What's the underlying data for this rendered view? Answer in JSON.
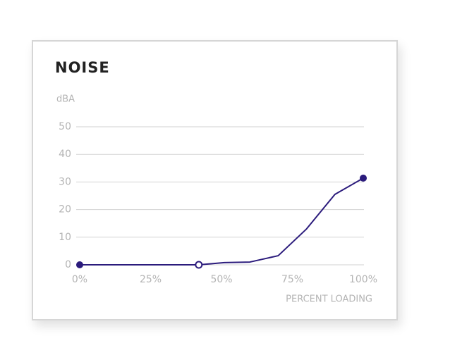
{
  "chart_data": {
    "type": "line",
    "title": "NOISE",
    "y_label": "dBA",
    "x_label": "PERCENT LOADING",
    "x": [
      0,
      42,
      51,
      60,
      70,
      80,
      90,
      100
    ],
    "series": [
      {
        "color": "#2b1b7c",
        "values": [
          0,
          0,
          0.8,
          1,
          3.3,
          13,
          25.5,
          31.4
        ],
        "markers": [
          "filled",
          "open",
          "none",
          "none",
          "none",
          "none",
          "none",
          "filled"
        ]
      }
    ],
    "xlim": [
      0,
      100
    ],
    "xticks": [
      {
        "value": 0,
        "label": "0%"
      },
      {
        "value": 25,
        "label": "25%"
      },
      {
        "value": 50,
        "label": "50%"
      },
      {
        "value": 75,
        "label": "75%"
      },
      {
        "value": 100,
        "label": "100%"
      }
    ],
    "ylim": [
      0,
      50
    ],
    "yticks": [
      0,
      10,
      20,
      30,
      40,
      50
    ],
    "grid": true
  }
}
